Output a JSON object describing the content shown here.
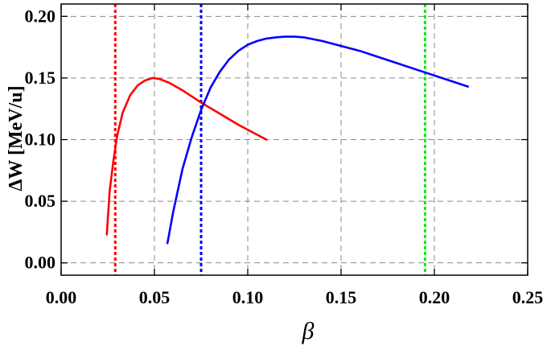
{
  "chart_data": {
    "type": "line",
    "xlabel": "β",
    "ylabel": "ΔW [MeV/u]",
    "xlim": [
      0.0,
      0.25
    ],
    "ylim": [
      -0.01,
      0.21
    ],
    "x_ticks": [
      "0.00",
      "0.05",
      "0.10",
      "0.15",
      "0.20",
      "0.25"
    ],
    "y_ticks": [
      "0.00",
      "0.05",
      "0.10",
      "0.15",
      "0.20"
    ],
    "grid": "dashed",
    "series": [
      {
        "color": "#ff0000",
        "x": [
          0.0245,
          0.026,
          0.028,
          0.03,
          0.033,
          0.037,
          0.041,
          0.045,
          0.049,
          0.053,
          0.058,
          0.065,
          0.075,
          0.085,
          0.095,
          0.105,
          0.11
        ],
        "y": [
          0.023,
          0.058,
          0.083,
          0.103,
          0.122,
          0.136,
          0.144,
          0.148,
          0.15,
          0.149,
          0.146,
          0.14,
          0.13,
          0.121,
          0.112,
          0.104,
          0.1
        ]
      },
      {
        "color": "#0000ff",
        "x": [
          0.057,
          0.06,
          0.065,
          0.07,
          0.075,
          0.08,
          0.085,
          0.09,
          0.095,
          0.1,
          0.105,
          0.11,
          0.115,
          0.12,
          0.125,
          0.13,
          0.14,
          0.15,
          0.16,
          0.17,
          0.18,
          0.19,
          0.2,
          0.21,
          0.218
        ],
        "y": [
          0.016,
          0.041,
          0.076,
          0.102,
          0.124,
          0.142,
          0.155,
          0.165,
          0.172,
          0.177,
          0.18,
          0.182,
          0.183,
          0.1835,
          0.1835,
          0.183,
          0.18,
          0.176,
          0.172,
          0.167,
          0.162,
          0.157,
          0.152,
          0.147,
          0.143
        ]
      }
    ],
    "vlines": [
      {
        "x": 0.029,
        "color": "#ff0000",
        "style": "dotted"
      },
      {
        "x": 0.075,
        "color": "#0000ff",
        "style": "dotted"
      },
      {
        "x": 0.195,
        "color": "#00ee00",
        "style": "dotted"
      }
    ]
  }
}
